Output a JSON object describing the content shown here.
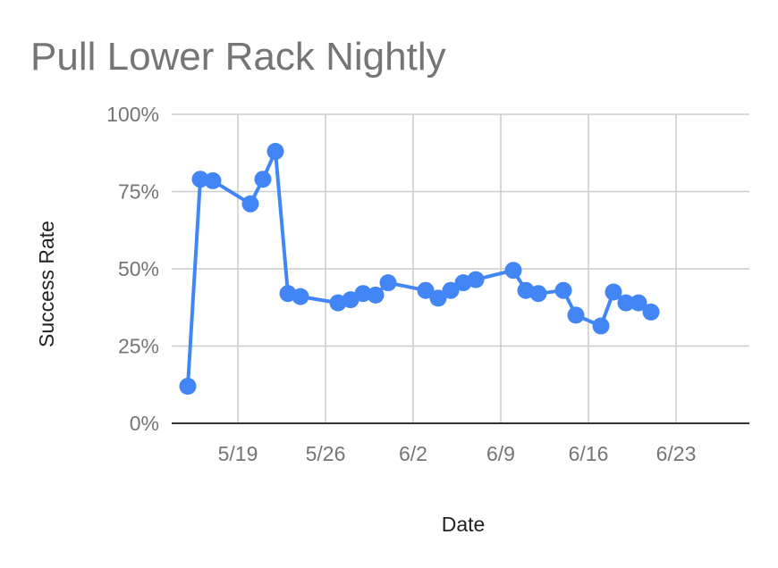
{
  "chart_data": {
    "type": "line",
    "title": "Pull Lower Rack Nightly",
    "xlabel": "Date",
    "ylabel": "Success Rate",
    "x_ticks": [
      "5/19",
      "5/26",
      "6/2",
      "6/9",
      "6/16",
      "6/23"
    ],
    "y_ticks": [
      "0%",
      "25%",
      "50%",
      "75%",
      "100%"
    ],
    "ylim": [
      0,
      100
    ],
    "grid": true,
    "legend": "none",
    "series": [
      {
        "color": "#4285F4",
        "points": [
          {
            "x": "5/15",
            "y": 12
          },
          {
            "x": "5/16",
            "y": 79
          },
          {
            "x": "5/17",
            "y": 78.5
          },
          {
            "x": "5/20",
            "y": 71
          },
          {
            "x": "5/21",
            "y": 79
          },
          {
            "x": "5/22",
            "y": 88
          },
          {
            "x": "5/23",
            "y": 42
          },
          {
            "x": "5/24",
            "y": 41
          },
          {
            "x": "5/27",
            "y": 39
          },
          {
            "x": "5/28",
            "y": 40
          },
          {
            "x": "5/29",
            "y": 42
          },
          {
            "x": "5/30",
            "y": 41.5
          },
          {
            "x": "5/31",
            "y": 45.5
          },
          {
            "x": "6/3",
            "y": 43
          },
          {
            "x": "6/4",
            "y": 40.5
          },
          {
            "x": "6/5",
            "y": 43
          },
          {
            "x": "6/6",
            "y": 45.5
          },
          {
            "x": "6/7",
            "y": 46.5
          },
          {
            "x": "6/10",
            "y": 49.5
          },
          {
            "x": "6/11",
            "y": 43
          },
          {
            "x": "6/12",
            "y": 42
          },
          {
            "x": "6/14",
            "y": 43
          },
          {
            "x": "6/15",
            "y": 35
          },
          {
            "x": "6/17",
            "y": 31.5
          },
          {
            "x": "6/18",
            "y": 42.5
          },
          {
            "x": "6/19",
            "y": 39
          },
          {
            "x": "6/20",
            "y": 39
          },
          {
            "x": "6/21",
            "y": 36
          }
        ]
      }
    ]
  }
}
